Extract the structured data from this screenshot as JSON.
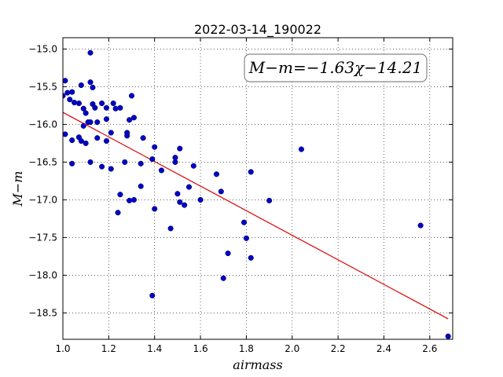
{
  "chart_data": {
    "type": "scatter",
    "title": "2022-03-14_190022",
    "xlabel": "airmass",
    "ylabel": "M−m",
    "xlim": [
      1.0,
      2.7
    ],
    "ylim": [
      -18.85,
      -14.85
    ],
    "x_ticks": [
      1.0,
      1.2,
      1.4,
      1.6,
      1.8,
      2.0,
      2.2,
      2.4,
      2.6
    ],
    "x_tick_labels": [
      "1.0",
      "1.2",
      "1.4",
      "1.6",
      "1.8",
      "2.0",
      "2.2",
      "2.4",
      "2.6"
    ],
    "y_ticks": [
      -15.0,
      -15.5,
      -16.0,
      -16.5,
      -17.0,
      -17.5,
      -18.0,
      -18.5
    ],
    "y_tick_labels": [
      "−15.0",
      "−15.5",
      "−16.0",
      "−16.5",
      "−17.0",
      "−17.5",
      "−18.0",
      "−18.5"
    ],
    "grid": true,
    "annotation": "M−m=−1.63χ−14.21",
    "annotation_position": "top-right",
    "point_color": "#0000cc",
    "fit_color": "#dd0000",
    "fit_line": {
      "slope": -1.63,
      "intercept": -14.21,
      "x_range": [
        1.0,
        2.68
      ]
    },
    "points": [
      [
        1.0,
        -15.62
      ],
      [
        1.01,
        -15.42
      ],
      [
        1.02,
        -15.58
      ],
      [
        1.03,
        -15.67
      ],
      [
        1.04,
        -15.57
      ],
      [
        1.05,
        -15.71
      ],
      [
        1.07,
        -15.72
      ],
      [
        1.08,
        -15.48
      ],
      [
        1.09,
        -15.79
      ],
      [
        1.1,
        -15.85
      ],
      [
        1.11,
        -15.97
      ],
      [
        1.12,
        -15.05
      ],
      [
        1.12,
        -15.44
      ],
      [
        1.13,
        -15.51
      ],
      [
        1.13,
        -15.73
      ],
      [
        1.14,
        -15.78
      ],
      [
        1.15,
        -15.97
      ],
      [
        1.17,
        -15.72
      ],
      [
        1.19,
        -15.78
      ],
      [
        1.19,
        -15.93
      ],
      [
        1.21,
        -16.11
      ],
      [
        1.22,
        -15.72
      ],
      [
        1.23,
        -15.79
      ],
      [
        1.25,
        -15.78
      ],
      [
        1.28,
        -16.11
      ],
      [
        1.29,
        -15.94
      ],
      [
        1.3,
        -15.62
      ],
      [
        1.31,
        -15.91
      ],
      [
        1.01,
        -16.13
      ],
      [
        1.04,
        -16.21
      ],
      [
        1.07,
        -16.17
      ],
      [
        1.08,
        -16.22
      ],
      [
        1.09,
        -16.02
      ],
      [
        1.1,
        -16.25
      ],
      [
        1.12,
        -15.97
      ],
      [
        1.15,
        -16.18
      ],
      [
        1.19,
        -16.22
      ],
      [
        1.28,
        -16.15
      ],
      [
        1.35,
        -16.18
      ],
      [
        1.4,
        -16.3
      ],
      [
        1.04,
        -16.52
      ],
      [
        1.12,
        -16.5
      ],
      [
        1.17,
        -16.56
      ],
      [
        1.21,
        -16.59
      ],
      [
        1.27,
        -16.5
      ],
      [
        1.34,
        -16.52
      ],
      [
        1.39,
        -16.46
      ],
      [
        1.43,
        -16.61
      ],
      [
        1.49,
        -16.44
      ],
      [
        1.49,
        -16.5
      ],
      [
        1.51,
        -16.32
      ],
      [
        1.57,
        -16.55
      ],
      [
        1.67,
        -16.66
      ],
      [
        1.82,
        -16.63
      ],
      [
        2.04,
        -16.33
      ],
      [
        1.34,
        -16.82
      ],
      [
        1.25,
        -16.93
      ],
      [
        1.29,
        -17.01
      ],
      [
        1.31,
        -17.0
      ],
      [
        1.24,
        -17.17
      ],
      [
        1.4,
        -17.12
      ],
      [
        1.5,
        -16.92
      ],
      [
        1.51,
        -17.03
      ],
      [
        1.53,
        -17.07
      ],
      [
        1.55,
        -16.83
      ],
      [
        1.6,
        -17.0
      ],
      [
        1.69,
        -16.89
      ],
      [
        1.9,
        -17.01
      ],
      [
        1.47,
        -17.38
      ],
      [
        1.79,
        -17.3
      ],
      [
        1.8,
        -17.51
      ],
      [
        1.72,
        -17.71
      ],
      [
        1.82,
        -17.77
      ],
      [
        1.7,
        -18.04
      ],
      [
        1.39,
        -18.27
      ],
      [
        2.56,
        -17.34
      ],
      [
        2.68,
        -18.81
      ]
    ]
  }
}
